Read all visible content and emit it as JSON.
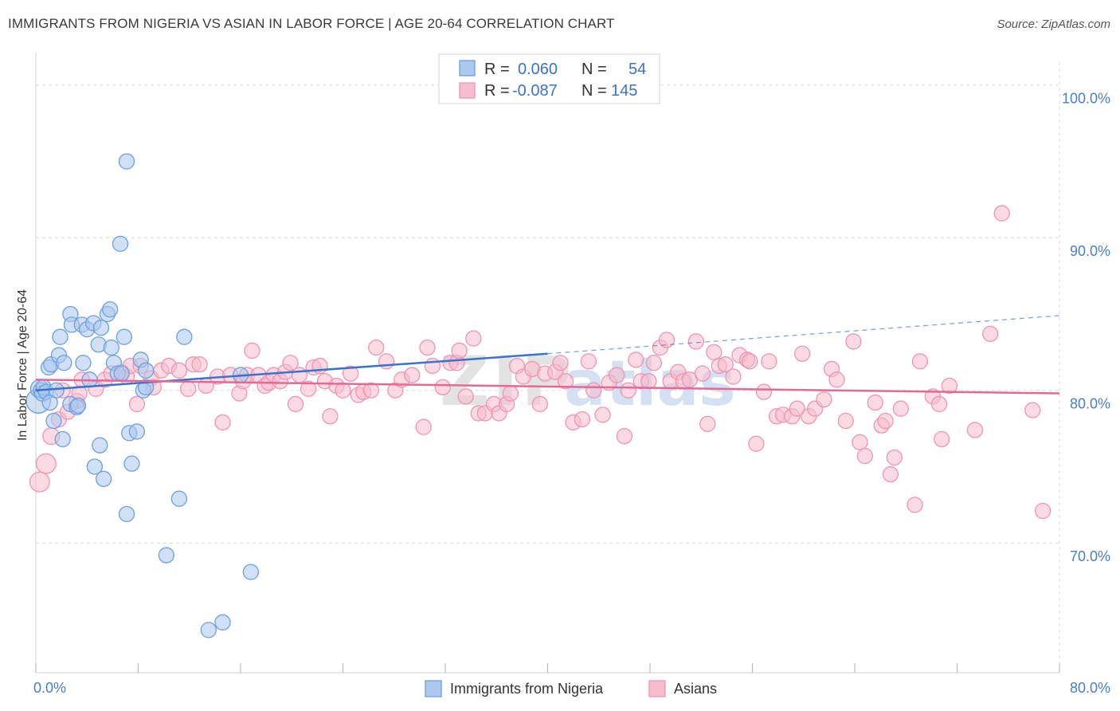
{
  "header": {
    "title": "IMMIGRANTS FROM NIGERIA VS ASIAN IN LABOR FORCE | AGE 20-64 CORRELATION CHART",
    "source": "Source: ZipAtlas.com"
  },
  "watermark": {
    "zip": "ZIP",
    "atlas": "atlas"
  },
  "legend_top": [
    {
      "r_label": "R =",
      "r_value": "0.060",
      "n_label": "N =",
      "n_value": "54"
    },
    {
      "r_label": "R =",
      "r_value": "-0.087",
      "n_label": "N =",
      "n_value": "145"
    }
  ],
  "colors": {
    "nigeria_fill": "#aac8f0",
    "nigeria_stroke": "#6f9fdc",
    "nigeria_line": "#3a74c9",
    "asian_fill": "#f7bccd",
    "asian_stroke": "#ef94b2",
    "asian_line": "#e46a95",
    "accent_text": "#3b73c8",
    "grid": "#d8d8d8"
  },
  "chart_data": {
    "type": "scatter",
    "title": "IMMIGRANTS FROM NIGERIA VS ASIAN IN LABOR FORCE | AGE 20-64 CORRELATION CHART",
    "ylabel": "In Labor Force | Age 20-64",
    "xlabel": "",
    "xlim": [
      0,
      80
    ],
    "ylim": [
      61.5,
      101.5
    ],
    "x_tick_labels": [
      "0.0%",
      "80.0%"
    ],
    "y_ticks": [
      70,
      80,
      90,
      100
    ],
    "y_tick_labels": [
      "70.0%",
      "80.0%",
      "90.0%",
      "100.0%"
    ],
    "grid": true,
    "legend_placement": "top-center",
    "series": [
      {
        "name": "Immigrants from Nigeria",
        "r": 0.06,
        "n": 54,
        "trend": {
          "x0": 0,
          "y0": 80.0,
          "x1": 40,
          "y1": 82.4,
          "dash_to_x": 80,
          "dash_to_y": 84.9
        },
        "points": [
          [
            0.2,
            79.3,
            1.6
          ],
          [
            0.3,
            80.1,
            1.2
          ],
          [
            0.4,
            80.0,
            1.0
          ],
          [
            0.5,
            79.8,
            1.0
          ],
          [
            0.6,
            80.2,
            1.0
          ],
          [
            0.8,
            79.9,
            1.0
          ],
          [
            1.0,
            81.5,
            1.0
          ],
          [
            1.1,
            79.2,
            1.0
          ],
          [
            1.2,
            81.7,
            1.0
          ],
          [
            1.4,
            78.0,
            1.0
          ],
          [
            1.6,
            80.0,
            1.0
          ],
          [
            1.8,
            82.3,
            1.0
          ],
          [
            1.9,
            83.5,
            1.0
          ],
          [
            2.2,
            81.8,
            1.0
          ],
          [
            2.1,
            76.8,
            1.0
          ],
          [
            2.7,
            85.0,
            1.0
          ],
          [
            2.7,
            79.1,
            1.0
          ],
          [
            2.8,
            84.3,
            1.0
          ],
          [
            3.2,
            78.9,
            1.0
          ],
          [
            3.3,
            79.0,
            1.0
          ],
          [
            3.6,
            84.3,
            1.0
          ],
          [
            3.7,
            81.8,
            1.0
          ],
          [
            4.0,
            84.0,
            1.0
          ],
          [
            4.2,
            80.7,
            1.0
          ],
          [
            4.5,
            84.4,
            1.0
          ],
          [
            4.6,
            75.0,
            1.0
          ],
          [
            4.9,
            83.0,
            1.0
          ],
          [
            5.0,
            76.4,
            1.0
          ],
          [
            5.1,
            84.1,
            1.0
          ],
          [
            5.3,
            74.2,
            1.0
          ],
          [
            5.6,
            85.0,
            1.0
          ],
          [
            5.8,
            85.3,
            1.0
          ],
          [
            5.9,
            82.8,
            1.0
          ],
          [
            6.1,
            81.8,
            1.0
          ],
          [
            6.4,
            81.1,
            1.0
          ],
          [
            6.6,
            89.6,
            1.0
          ],
          [
            6.7,
            81.1,
            1.0
          ],
          [
            6.9,
            83.5,
            1.0
          ],
          [
            7.1,
            95.0,
            1.0
          ],
          [
            7.1,
            71.9,
            1.0
          ],
          [
            7.3,
            77.2,
            1.0
          ],
          [
            7.5,
            75.2,
            1.0
          ],
          [
            7.9,
            77.3,
            1.0
          ],
          [
            8.2,
            82.0,
            1.0
          ],
          [
            8.4,
            80.0,
            1.0
          ],
          [
            8.6,
            81.3,
            1.0
          ],
          [
            8.6,
            80.2,
            1.0
          ],
          [
            10.2,
            69.2,
            1.0
          ],
          [
            11.2,
            72.9,
            1.0
          ],
          [
            11.6,
            83.5,
            1.0
          ],
          [
            13.5,
            64.3,
            1.0
          ],
          [
            14.6,
            64.8,
            1.0
          ],
          [
            16.0,
            81.0,
            1.0
          ],
          [
            16.8,
            68.1,
            1.0
          ]
        ]
      },
      {
        "name": "Asians",
        "r": -0.087,
        "n": 145,
        "trend": {
          "x0": 0,
          "y0": 80.7,
          "x1": 80,
          "y1": 79.8
        },
        "points": [
          [
            0.3,
            74.0,
            1.3
          ],
          [
            0.8,
            75.2,
            1.3
          ],
          [
            1.2,
            77.0,
            1.1
          ],
          [
            1.8,
            78.1,
            1.0
          ],
          [
            2.1,
            80.0,
            1.0
          ],
          [
            2.5,
            78.6,
            1.0
          ],
          [
            3.2,
            79.3,
            1.0
          ],
          [
            3.4,
            79.8,
            1.0
          ],
          [
            3.6,
            80.7,
            1.0
          ],
          [
            4.7,
            80.1,
            1.0
          ],
          [
            5.4,
            80.7,
            1.0
          ],
          [
            5.9,
            81.1,
            1.0
          ],
          [
            6.7,
            81.2,
            1.0
          ],
          [
            7.1,
            80.9,
            1.0
          ],
          [
            7.4,
            81.6,
            1.0
          ],
          [
            7.9,
            79.1,
            1.0
          ],
          [
            8.2,
            81.6,
            1.0
          ],
          [
            9.0,
            80.8,
            1.0
          ],
          [
            9.2,
            80.2,
            1.0
          ],
          [
            9.8,
            81.3,
            1.0
          ],
          [
            10.4,
            81.6,
            1.0
          ],
          [
            11.2,
            81.3,
            1.0
          ],
          [
            11.9,
            80.1,
            1.0
          ],
          [
            12.3,
            81.7,
            1.0
          ],
          [
            12.8,
            81.7,
            1.0
          ],
          [
            13.3,
            80.3,
            1.0
          ],
          [
            14.2,
            80.9,
            1.0
          ],
          [
            14.6,
            77.9,
            1.0
          ],
          [
            15.2,
            81.0,
            1.0
          ],
          [
            15.9,
            79.8,
            1.0
          ],
          [
            16.2,
            80.6,
            1.0
          ],
          [
            16.5,
            81.0,
            1.0
          ],
          [
            16.9,
            82.6,
            1.0
          ],
          [
            17.4,
            81.0,
            1.0
          ],
          [
            17.9,
            80.3,
            1.0
          ],
          [
            18.2,
            80.5,
            1.0
          ],
          [
            18.6,
            81.0,
            1.0
          ],
          [
            19.1,
            80.6,
            1.0
          ],
          [
            19.5,
            81.2,
            1.0
          ],
          [
            19.9,
            81.8,
            1.0
          ],
          [
            20.3,
            79.1,
            1.0
          ],
          [
            20.6,
            81.0,
            1.0
          ],
          [
            21.3,
            80.1,
            1.0
          ],
          [
            21.7,
            81.5,
            1.0
          ],
          [
            22.2,
            81.6,
            1.0
          ],
          [
            22.6,
            80.6,
            1.0
          ],
          [
            23.0,
            78.3,
            1.0
          ],
          [
            23.5,
            80.3,
            1.0
          ],
          [
            24.0,
            80.0,
            1.0
          ],
          [
            24.6,
            81.1,
            1.0
          ],
          [
            25.2,
            79.7,
            1.0
          ],
          [
            25.6,
            79.9,
            1.0
          ],
          [
            26.2,
            80.0,
            1.0
          ],
          [
            26.6,
            82.8,
            1.0
          ],
          [
            27.4,
            81.9,
            1.0
          ],
          [
            28.1,
            80.0,
            1.0
          ],
          [
            28.6,
            80.7,
            1.0
          ],
          [
            29.4,
            81.0,
            1.0
          ],
          [
            30.3,
            77.6,
            1.0
          ],
          [
            30.6,
            82.8,
            1.0
          ],
          [
            31.0,
            81.6,
            1.0
          ],
          [
            31.8,
            80.2,
            1.0
          ],
          [
            32.4,
            81.8,
            1.0
          ],
          [
            32.9,
            81.8,
            1.0
          ],
          [
            33.1,
            82.6,
            1.0
          ],
          [
            33.6,
            79.6,
            1.0
          ],
          [
            34.2,
            83.4,
            1.0
          ],
          [
            34.6,
            78.5,
            1.0
          ],
          [
            35.1,
            78.5,
            1.0
          ],
          [
            35.8,
            79.1,
            1.0
          ],
          [
            36.2,
            78.5,
            1.0
          ],
          [
            36.8,
            79.1,
            1.0
          ],
          [
            37.1,
            79.8,
            1.0
          ],
          [
            37.6,
            81.6,
            1.0
          ],
          [
            38.1,
            80.9,
            1.0
          ],
          [
            38.8,
            81.4,
            1.0
          ],
          [
            39.4,
            79.1,
            1.0
          ],
          [
            39.8,
            81.1,
            1.0
          ],
          [
            40.6,
            81.2,
            1.0
          ],
          [
            41.0,
            81.8,
            1.0
          ],
          [
            41.4,
            80.6,
            1.0
          ],
          [
            42.0,
            77.9,
            1.0
          ],
          [
            42.7,
            78.1,
            1.0
          ],
          [
            43.2,
            81.9,
            1.0
          ],
          [
            43.6,
            80.0,
            1.0
          ],
          [
            44.3,
            78.4,
            1.0
          ],
          [
            44.8,
            80.5,
            1.0
          ],
          [
            45.4,
            81.0,
            1.0
          ],
          [
            46.0,
            77.0,
            1.0
          ],
          [
            46.3,
            80.0,
            1.0
          ],
          [
            46.9,
            82.0,
            1.0
          ],
          [
            47.3,
            80.6,
            1.0
          ],
          [
            47.9,
            80.6,
            1.0
          ],
          [
            48.3,
            81.8,
            1.0
          ],
          [
            48.8,
            82.8,
            1.0
          ],
          [
            49.3,
            83.3,
            1.0
          ],
          [
            49.6,
            80.6,
            1.0
          ],
          [
            50.2,
            81.2,
            1.0
          ],
          [
            50.6,
            80.6,
            1.0
          ],
          [
            51.1,
            80.7,
            1.0
          ],
          [
            51.6,
            83.2,
            1.0
          ],
          [
            52.1,
            81.1,
            1.0
          ],
          [
            52.5,
            77.8,
            1.0
          ],
          [
            53.0,
            82.5,
            1.0
          ],
          [
            53.4,
            81.6,
            1.0
          ],
          [
            53.9,
            81.7,
            1.0
          ],
          [
            54.5,
            80.9,
            1.0
          ],
          [
            55.0,
            82.3,
            1.0
          ],
          [
            55.6,
            82.0,
            1.0
          ],
          [
            55.8,
            81.9,
            1.0
          ],
          [
            56.3,
            76.5,
            1.0
          ],
          [
            56.9,
            79.9,
            1.0
          ],
          [
            57.3,
            81.9,
            1.0
          ],
          [
            57.9,
            78.3,
            1.0
          ],
          [
            58.4,
            78.4,
            1.0
          ],
          [
            59.1,
            78.3,
            1.0
          ],
          [
            59.5,
            78.8,
            1.0
          ],
          [
            59.9,
            82.4,
            1.0
          ],
          [
            60.4,
            78.3,
            1.0
          ],
          [
            60.9,
            78.8,
            1.0
          ],
          [
            61.6,
            79.4,
            1.0
          ],
          [
            62.2,
            81.4,
            1.0
          ],
          [
            62.6,
            80.7,
            1.0
          ],
          [
            63.3,
            78.0,
            1.0
          ],
          [
            63.9,
            83.2,
            1.0
          ],
          [
            64.4,
            76.6,
            1.0
          ],
          [
            64.8,
            75.7,
            1.0
          ],
          [
            65.6,
            79.2,
            1.0
          ],
          [
            66.1,
            77.7,
            1.0
          ],
          [
            66.4,
            78.0,
            1.0
          ],
          [
            66.8,
            74.5,
            1.0
          ],
          [
            67.1,
            75.6,
            1.0
          ],
          [
            67.6,
            78.8,
            1.0
          ],
          [
            68.7,
            72.5,
            1.0
          ],
          [
            69.1,
            81.9,
            1.0
          ],
          [
            70.1,
            79.6,
            1.0
          ],
          [
            70.6,
            79.1,
            1.0
          ],
          [
            70.8,
            76.8,
            1.0
          ],
          [
            71.4,
            80.3,
            1.0
          ],
          [
            73.4,
            77.4,
            1.0
          ],
          [
            74.6,
            83.7,
            1.0
          ],
          [
            75.5,
            91.6,
            1.0
          ],
          [
            77.9,
            78.7,
            1.0
          ],
          [
            78.7,
            72.1,
            1.0
          ]
        ]
      }
    ]
  },
  "legend_bottom": [
    {
      "label": "Immigrants from Nigeria"
    },
    {
      "label": "Asians"
    }
  ]
}
